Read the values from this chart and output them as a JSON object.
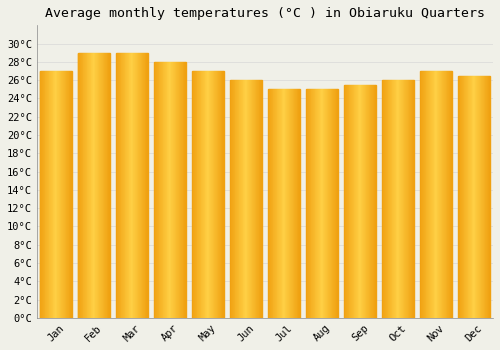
{
  "title": "Average monthly temperatures (°C ) in Obiaruku Quarters",
  "months": [
    "Jan",
    "Feb",
    "Mar",
    "Apr",
    "May",
    "Jun",
    "Jul",
    "Aug",
    "Sep",
    "Oct",
    "Nov",
    "Dec"
  ],
  "values": [
    27,
    29,
    29,
    28,
    27,
    26,
    25,
    25,
    25.5,
    26,
    27,
    26.5
  ],
  "bar_color_center": "#FFD045",
  "bar_color_edge": "#F0A010",
  "background_color": "#F0F0E8",
  "ylim": [
    0,
    32
  ],
  "yticks": [
    0,
    2,
    4,
    6,
    8,
    10,
    12,
    14,
    16,
    18,
    20,
    22,
    24,
    26,
    28,
    30
  ],
  "ylabel_suffix": "°C",
  "grid_color": "#D8D8D8",
  "title_fontsize": 9.5,
  "tick_fontsize": 7.5,
  "bar_width": 0.85
}
